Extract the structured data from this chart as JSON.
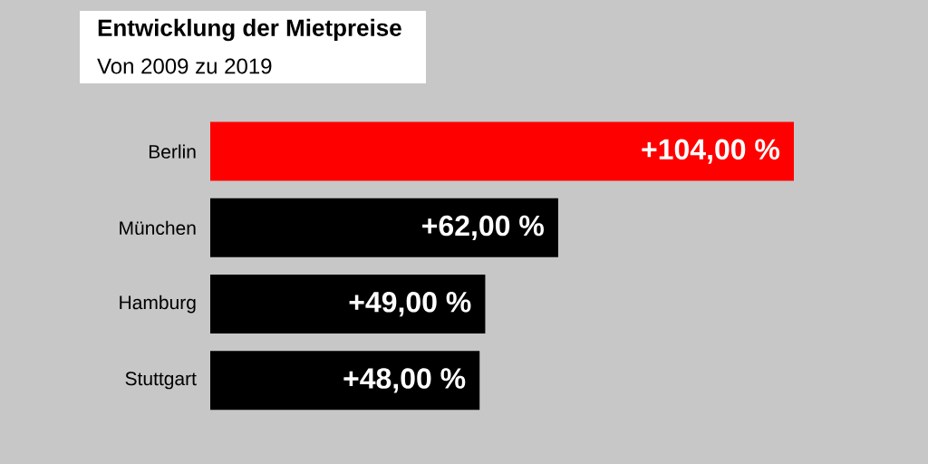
{
  "chart_data": {
    "type": "bar",
    "orientation": "horizontal",
    "title": "Entwicklung der Mietpreise",
    "subtitle": "Von 2009 zu 2019",
    "categories": [
      "Berlin",
      "München",
      "Hamburg",
      "Stuttgart"
    ],
    "values": [
      104,
      62,
      49,
      48
    ],
    "colors": [
      "#ff0000",
      "#000000",
      "#000000",
      "#000000"
    ],
    "value_labels": [
      "+104,00 %",
      "+62,00 %",
      "+49,00 %",
      "+48,00 %"
    ],
    "tick_labels": "y"
  }
}
